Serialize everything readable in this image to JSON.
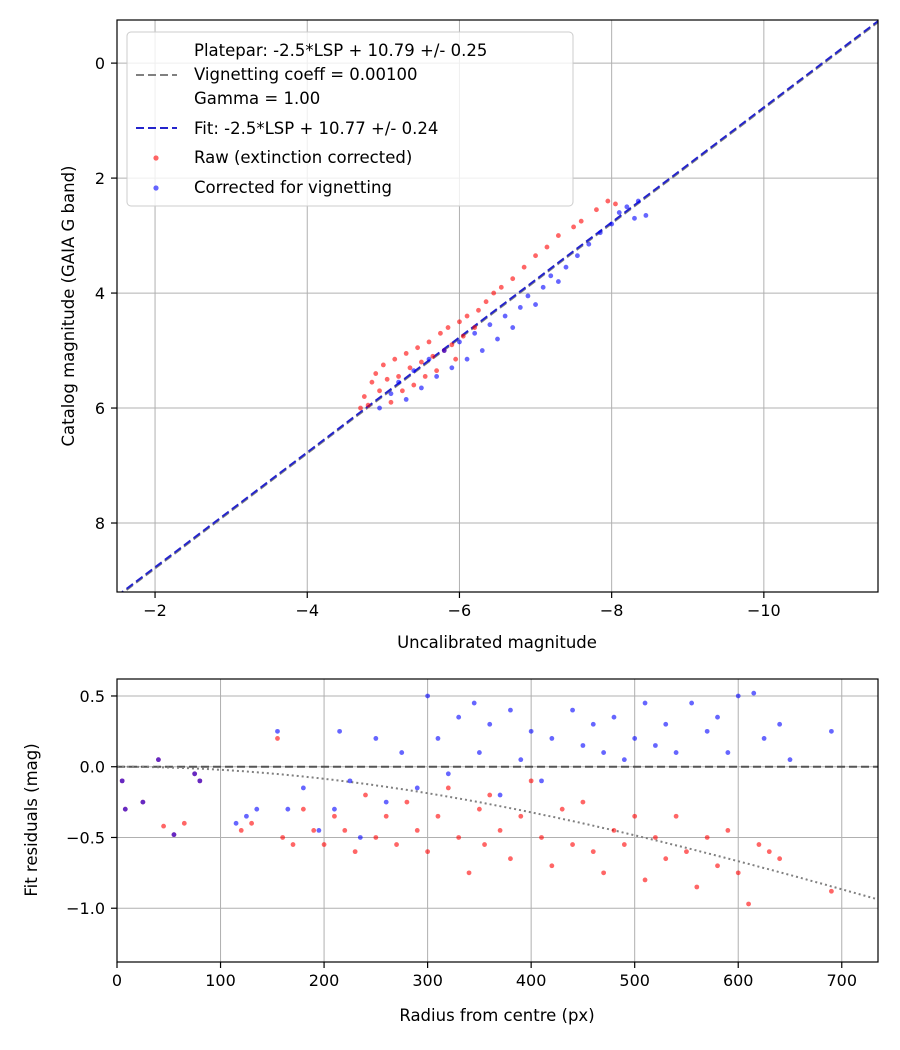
{
  "chart_data": [
    {
      "type": "scatter",
      "xlabel": "Uncalibrated magnitude",
      "ylabel": "Catalog magnitude (GAIA G band)",
      "xlim": [
        -1.5,
        -11.5
      ],
      "ylim": [
        9.2,
        -0.75
      ],
      "x_inverted": true,
      "y_inverted": true,
      "grid": true,
      "xticks": [
        -2,
        -4,
        -6,
        -8,
        -10
      ],
      "yticks": [
        0,
        2,
        4,
        6,
        8
      ],
      "xtick_labels": [
        "−2",
        "−4",
        "−6",
        "−8",
        "−10"
      ],
      "ytick_labels": [
        "0",
        "2",
        "4",
        "6",
        "8"
      ],
      "legend_placement": "top-left",
      "lines": [
        {
          "name": "Platepar: -2.5*LSP + 10.79 +/- 0.25\nVignetting coeff = 0.00100\nGamma = 1.00",
          "style": "dashed",
          "color": "#808080",
          "slope": 1,
          "intercept": 10.79
        },
        {
          "name": "Fit: -2.5*LSP + 10.77 +/- 0.24",
          "style": "dashed",
          "color": "#2424cc",
          "slope": 1,
          "intercept": 10.77
        }
      ],
      "series": [
        {
          "name": "Raw (extinction corrected)",
          "color": "#ff0000",
          "points": [
            [
              -4.75,
              5.8
            ],
            [
              -4.85,
              5.55
            ],
            [
              -4.9,
              5.4
            ],
            [
              -4.95,
              5.7
            ],
            [
              -5.0,
              5.25
            ],
            [
              -5.05,
              5.5
            ],
            [
              -5.1,
              5.9
            ],
            [
              -5.15,
              5.15
            ],
            [
              -5.2,
              5.45
            ],
            [
              -5.25,
              5.7
            ],
            [
              -5.3,
              5.05
            ],
            [
              -5.35,
              5.3
            ],
            [
              -5.4,
              5.6
            ],
            [
              -5.45,
              4.95
            ],
            [
              -5.5,
              5.2
            ],
            [
              -5.55,
              5.45
            ],
            [
              -5.6,
              4.85
            ],
            [
              -5.65,
              5.1
            ],
            [
              -5.7,
              5.35
            ],
            [
              -5.75,
              4.7
            ],
            [
              -5.8,
              5.0
            ],
            [
              -5.85,
              4.6
            ],
            [
              -5.9,
              4.9
            ],
            [
              -5.95,
              5.15
            ],
            [
              -6.0,
              4.5
            ],
            [
              -6.05,
              4.75
            ],
            [
              -6.1,
              4.4
            ],
            [
              -6.2,
              4.6
            ],
            [
              -6.25,
              4.3
            ],
            [
              -6.35,
              4.15
            ],
            [
              -6.45,
              4.0
            ],
            [
              -6.55,
              3.9
            ],
            [
              -6.7,
              3.75
            ],
            [
              -6.85,
              3.55
            ],
            [
              -7.0,
              3.35
            ],
            [
              -7.15,
              3.2
            ],
            [
              -7.3,
              3.0
            ],
            [
              -7.5,
              2.85
            ],
            [
              -7.6,
              2.75
            ],
            [
              -7.8,
              2.55
            ],
            [
              -7.95,
              2.4
            ],
            [
              -8.05,
              2.45
            ],
            [
              -4.7,
              6.0
            ],
            [
              -4.8,
              5.95
            ]
          ]
        },
        {
          "name": "Corrected for vignetting",
          "color": "#0000ff",
          "points": [
            [
              -4.95,
              6.0
            ],
            [
              -5.1,
              5.75
            ],
            [
              -5.2,
              5.55
            ],
            [
              -5.3,
              5.85
            ],
            [
              -5.4,
              5.35
            ],
            [
              -5.5,
              5.65
            ],
            [
              -5.6,
              5.15
            ],
            [
              -5.7,
              5.45
            ],
            [
              -5.8,
              5.0
            ],
            [
              -5.9,
              5.3
            ],
            [
              -6.0,
              4.85
            ],
            [
              -6.1,
              5.15
            ],
            [
              -6.2,
              4.7
            ],
            [
              -6.3,
              5.0
            ],
            [
              -6.4,
              4.55
            ],
            [
              -6.5,
              4.8
            ],
            [
              -6.6,
              4.4
            ],
            [
              -6.7,
              4.6
            ],
            [
              -6.8,
              4.25
            ],
            [
              -6.9,
              4.05
            ],
            [
              -7.0,
              4.2
            ],
            [
              -7.1,
              3.9
            ],
            [
              -7.2,
              3.7
            ],
            [
              -7.3,
              3.8
            ],
            [
              -7.4,
              3.55
            ],
            [
              -7.55,
              3.35
            ],
            [
              -7.7,
              3.15
            ],
            [
              -7.85,
              2.95
            ],
            [
              -8.0,
              2.8
            ],
            [
              -8.1,
              2.6
            ],
            [
              -8.2,
              2.5
            ],
            [
              -8.3,
              2.7
            ],
            [
              -8.35,
              2.4
            ],
            [
              -8.45,
              2.65
            ]
          ]
        }
      ]
    },
    {
      "type": "scatter",
      "xlabel": "Radius from centre (px)",
      "ylabel": "Fit residuals (mag)",
      "xlim": [
        0,
        735
      ],
      "ylim": [
        -1.38,
        0.62
      ],
      "grid": true,
      "xticks": [
        0,
        100,
        200,
        300,
        400,
        500,
        600,
        700
      ],
      "yticks": [
        0.5,
        0.0,
        -0.5,
        -1.0
      ],
      "xtick_labels": [
        "0",
        "100",
        "200",
        "300",
        "400",
        "500",
        "600",
        "700"
      ],
      "ytick_labels": [
        "0.5",
        "0.0",
        "−0.5",
        "−1.0"
      ],
      "reference_lines": [
        {
          "type": "horizontal",
          "y": 0,
          "style": "dashed",
          "color": "#555555"
        },
        {
          "type": "vignetting-curve",
          "coeff": 0.001,
          "style": "dotted",
          "color": "#808080"
        }
      ],
      "series": [
        {
          "name": "Raw (extinction corrected)",
          "color": "#ff0000",
          "points": [
            [
              5,
              -0.1
            ],
            [
              8,
              -0.3
            ],
            [
              25,
              -0.25
            ],
            [
              40,
              0.05
            ],
            [
              45,
              -0.42
            ],
            [
              55,
              -0.48
            ],
            [
              65,
              -0.4
            ],
            [
              75,
              -0.05
            ],
            [
              80,
              -0.1
            ],
            [
              120,
              -0.45
            ],
            [
              130,
              -0.4
            ],
            [
              155,
              0.2
            ],
            [
              160,
              -0.5
            ],
            [
              170,
              -0.55
            ],
            [
              180,
              -0.3
            ],
            [
              190,
              -0.45
            ],
            [
              200,
              -0.55
            ],
            [
              210,
              -0.35
            ],
            [
              220,
              -0.45
            ],
            [
              230,
              -0.6
            ],
            [
              240,
              -0.2
            ],
            [
              250,
              -0.5
            ],
            [
              260,
              -0.35
            ],
            [
              270,
              -0.55
            ],
            [
              280,
              -0.25
            ],
            [
              290,
              -0.45
            ],
            [
              300,
              -0.6
            ],
            [
              310,
              -0.35
            ],
            [
              320,
              -0.15
            ],
            [
              330,
              -0.5
            ],
            [
              340,
              -0.75
            ],
            [
              350,
              -0.3
            ],
            [
              355,
              -0.55
            ],
            [
              360,
              -0.2
            ],
            [
              370,
              -0.45
            ],
            [
              380,
              -0.65
            ],
            [
              390,
              -0.35
            ],
            [
              400,
              -0.1
            ],
            [
              410,
              -0.5
            ],
            [
              420,
              -0.7
            ],
            [
              430,
              -0.3
            ],
            [
              440,
              -0.55
            ],
            [
              450,
              -0.25
            ],
            [
              460,
              -0.6
            ],
            [
              470,
              -0.75
            ],
            [
              480,
              -0.45
            ],
            [
              490,
              -0.55
            ],
            [
              500,
              -0.35
            ],
            [
              510,
              -0.8
            ],
            [
              520,
              -0.5
            ],
            [
              530,
              -0.65
            ],
            [
              540,
              -0.35
            ],
            [
              550,
              -0.6
            ],
            [
              560,
              -0.85
            ],
            [
              570,
              -0.5
            ],
            [
              580,
              -0.7
            ],
            [
              590,
              -0.45
            ],
            [
              600,
              -0.75
            ],
            [
              610,
              -0.97
            ],
            [
              620,
              -0.55
            ],
            [
              630,
              -0.6
            ],
            [
              640,
              -0.65
            ],
            [
              690,
              -0.88
            ]
          ]
        },
        {
          "name": "Corrected for vignetting",
          "color": "#0000ff",
          "points": [
            [
              5,
              -0.1
            ],
            [
              8,
              -0.3
            ],
            [
              25,
              -0.25
            ],
            [
              40,
              0.05
            ],
            [
              55,
              -0.48
            ],
            [
              75,
              -0.05
            ],
            [
              80,
              -0.1
            ],
            [
              115,
              -0.4
            ],
            [
              125,
              -0.35
            ],
            [
              135,
              -0.3
            ],
            [
              155,
              0.25
            ],
            [
              165,
              -0.3
            ],
            [
              180,
              -0.15
            ],
            [
              195,
              -0.45
            ],
            [
              210,
              -0.3
            ],
            [
              215,
              0.25
            ],
            [
              225,
              -0.1
            ],
            [
              235,
              -0.5
            ],
            [
              250,
              0.2
            ],
            [
              260,
              -0.25
            ],
            [
              275,
              0.1
            ],
            [
              290,
              -0.15
            ],
            [
              300,
              0.5
            ],
            [
              310,
              0.2
            ],
            [
              320,
              -0.05
            ],
            [
              330,
              0.35
            ],
            [
              345,
              0.45
            ],
            [
              350,
              0.1
            ],
            [
              360,
              0.3
            ],
            [
              370,
              -0.2
            ],
            [
              380,
              0.4
            ],
            [
              390,
              0.05
            ],
            [
              400,
              0.25
            ],
            [
              410,
              -0.1
            ],
            [
              420,
              0.2
            ],
            [
              440,
              0.4
            ],
            [
              450,
              0.15
            ],
            [
              460,
              0.3
            ],
            [
              470,
              0.1
            ],
            [
              480,
              0.35
            ],
            [
              490,
              0.05
            ],
            [
              500,
              0.2
            ],
            [
              510,
              0.45
            ],
            [
              520,
              0.15
            ],
            [
              530,
              0.3
            ],
            [
              540,
              0.1
            ],
            [
              555,
              0.45
            ],
            [
              570,
              0.25
            ],
            [
              580,
              0.35
            ],
            [
              590,
              0.1
            ],
            [
              600,
              0.5
            ],
            [
              615,
              0.52
            ],
            [
              625,
              0.2
            ],
            [
              640,
              0.3
            ],
            [
              650,
              0.05
            ],
            [
              690,
              0.25
            ]
          ]
        }
      ]
    }
  ]
}
